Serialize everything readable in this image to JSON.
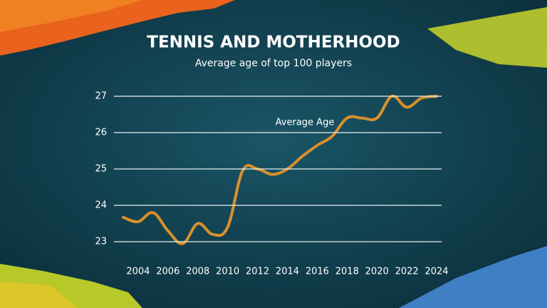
{
  "chart_data": {
    "type": "line",
    "title": "TENNIS AND MOTHERHOOD",
    "subtitle": "Average age of top 100 players",
    "annotation": "Average Age",
    "x": [
      2003,
      2004,
      2005,
      2006,
      2007,
      2008,
      2009,
      2010,
      2011,
      2012,
      2013,
      2014,
      2015,
      2016,
      2017,
      2018,
      2019,
      2020,
      2021,
      2022,
      2023,
      2024
    ],
    "series": [
      {
        "name": "Average Age",
        "color": "#d8902c",
        "values": [
          23.67,
          23.55,
          23.8,
          23.3,
          22.95,
          23.5,
          23.2,
          23.4,
          24.95,
          25.0,
          24.85,
          25.0,
          25.35,
          25.65,
          25.9,
          26.4,
          26.4,
          26.4,
          27.0,
          26.7,
          26.95,
          27.0
        ]
      }
    ],
    "xlim": [
      2002,
      2025
    ],
    "xticks": [
      2004,
      2006,
      2008,
      2010,
      2012,
      2014,
      2016,
      2018,
      2020,
      2022,
      2024
    ],
    "ylim": [
      22.5,
      27.5
    ],
    "yticks": [
      23,
      24,
      25,
      26,
      27
    ],
    "grid": true
  }
}
